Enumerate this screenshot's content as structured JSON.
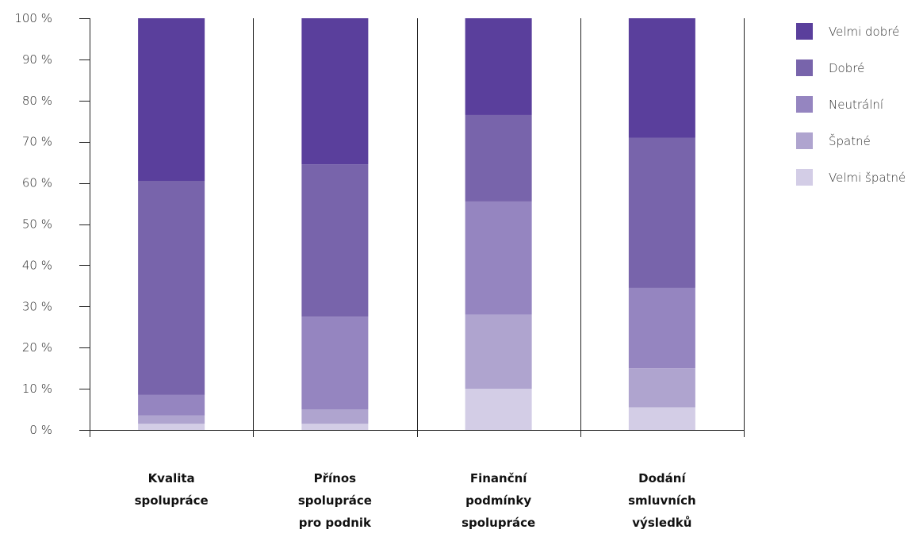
{
  "chart_data": {
    "type": "bar",
    "stacked": true,
    "categories": [
      [
        "Kvalita",
        "spolupráce"
      ],
      [
        "Přínos",
        "spolupráce",
        "pro podnik"
      ],
      [
        "Finanční",
        "podmínky",
        "spolupráce"
      ],
      [
        "Dodání",
        "smluvních",
        "výsledků"
      ]
    ],
    "series": [
      {
        "name": "Velmi špatné",
        "color": "#d3cde6",
        "values": [
          1.5,
          1.5,
          10,
          5.5
        ]
      },
      {
        "name": "Špatné",
        "color": "#afa4cf",
        "values": [
          2,
          3.5,
          18,
          9.5
        ]
      },
      {
        "name": "Neutrální",
        "color": "#9585c0",
        "values": [
          5,
          22.5,
          27.5,
          19.5
        ]
      },
      {
        "name": "Dobré",
        "color": "#7864ab",
        "values": [
          52,
          37,
          21,
          36.5
        ]
      },
      {
        "name": "Velmi dobré",
        "color": "#5a3f9c",
        "values": [
          39.5,
          35.5,
          23.5,
          29
        ]
      }
    ],
    "legend_order": [
      "Velmi dobré",
      "Dobré",
      "Neutrální",
      "Špatné",
      "Velmi špatné"
    ],
    "y_ticks": [
      "0 %",
      "10 %",
      "20 %",
      "30 %",
      "40 %",
      "50 %",
      "60 %",
      "70 %",
      "80 %",
      "90 %",
      "100 %"
    ],
    "ylim": [
      0,
      100
    ],
    "grid": "vertical category dividers",
    "legend_position": "right"
  }
}
